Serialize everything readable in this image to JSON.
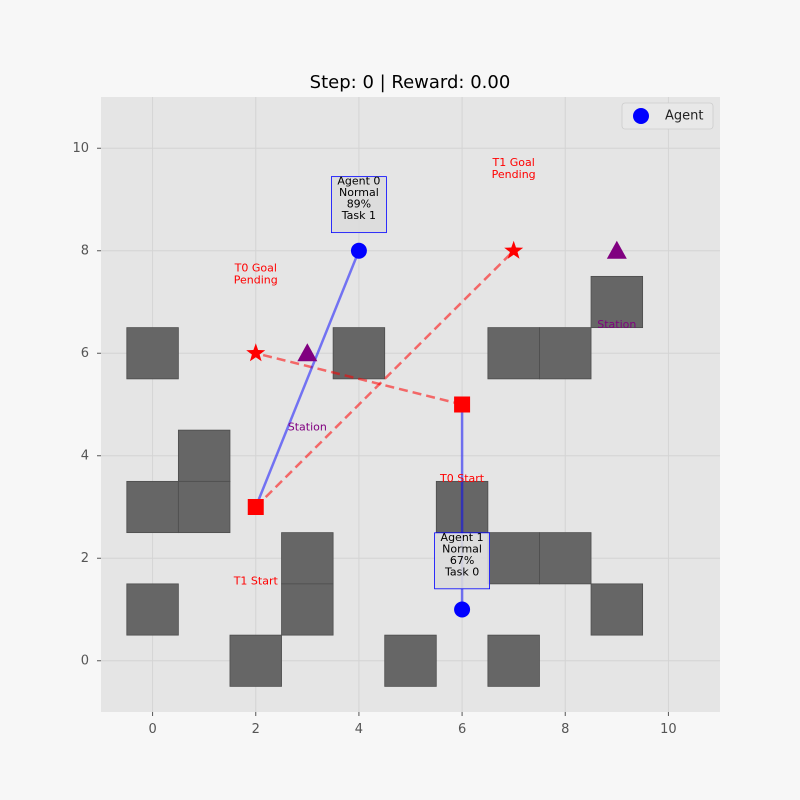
{
  "chart_data": {
    "type": "scatter",
    "title": "Step: 0 | Reward: 0.00",
    "xlim": [
      -1,
      11
    ],
    "ylim": [
      -1,
      11
    ],
    "xticks": [
      0,
      2,
      4,
      6,
      8,
      10
    ],
    "yticks": [
      0,
      2,
      4,
      6,
      8,
      10
    ],
    "grid": true,
    "legend": {
      "placement": "top-right",
      "entries": [
        {
          "label": "Agent",
          "marker": "circle",
          "color": "#0000ff"
        }
      ]
    },
    "colors": {
      "agent": "#0000ff",
      "obstacle": "#666666",
      "station": "#800080",
      "task": "#ff0000",
      "plot_bg": "#e5e5e5",
      "grid": "#d4d4d4"
    },
    "obstacles": [
      {
        "x": 0,
        "y": 6
      },
      {
        "x": 4,
        "y": 6
      },
      {
        "x": 7,
        "y": 6
      },
      {
        "x": 8,
        "y": 6
      },
      {
        "x": 9,
        "y": 7
      },
      {
        "x": 1,
        "y": 4
      },
      {
        "x": 0,
        "y": 3
      },
      {
        "x": 1,
        "y": 3
      },
      {
        "x": 6,
        "y": 3
      },
      {
        "x": 3,
        "y": 2
      },
      {
        "x": 7,
        "y": 2
      },
      {
        "x": 8,
        "y": 2
      },
      {
        "x": 0,
        "y": 1
      },
      {
        "x": 3,
        "y": 1
      },
      {
        "x": 9,
        "y": 1
      },
      {
        "x": 2,
        "y": 0
      },
      {
        "x": 5,
        "y": 0
      },
      {
        "x": 7,
        "y": 0
      }
    ],
    "stations": [
      {
        "x": 3,
        "y": 6,
        "label": "Station",
        "label_x": 3,
        "label_y": 4.55
      },
      {
        "x": 9,
        "y": 8,
        "label": "Station",
        "label_x": 9,
        "label_y": 6.55
      }
    ],
    "tasks": [
      {
        "id": "T0",
        "start": {
          "x": 6,
          "y": 5
        },
        "goal": {
          "x": 2,
          "y": 6
        },
        "start_label": "T0 Start",
        "start_label_pos": {
          "x": 6,
          "y": 3.55
        },
        "goal_label": [
          "T0 Goal",
          "Pending"
        ],
        "goal_label_pos": {
          "x": 2,
          "y": 7.6
        }
      },
      {
        "id": "T1",
        "start": {
          "x": 2,
          "y": 3
        },
        "goal": {
          "x": 7,
          "y": 8
        },
        "start_label": "T1 Start",
        "start_label_pos": {
          "x": 2,
          "y": 1.55
        },
        "goal_label": [
          "T1 Goal",
          "Pending"
        ],
        "goal_label_pos": {
          "x": 7,
          "y": 9.65
        }
      }
    ],
    "agents": [
      {
        "name": "Agent 0",
        "x": 4,
        "y": 8,
        "status": "Normal",
        "battery": "89%",
        "task": "Task 1",
        "path_to": {
          "x": 2,
          "y": 3
        },
        "box_pos": {
          "x": 4,
          "y": 8.9
        }
      },
      {
        "name": "Agent 1",
        "x": 6,
        "y": 1,
        "status": "Normal",
        "battery": "67%",
        "task": "Task 0",
        "path_to": {
          "x": 6,
          "y": 5
        },
        "box_pos": {
          "x": 6,
          "y": 1.95
        }
      }
    ]
  }
}
